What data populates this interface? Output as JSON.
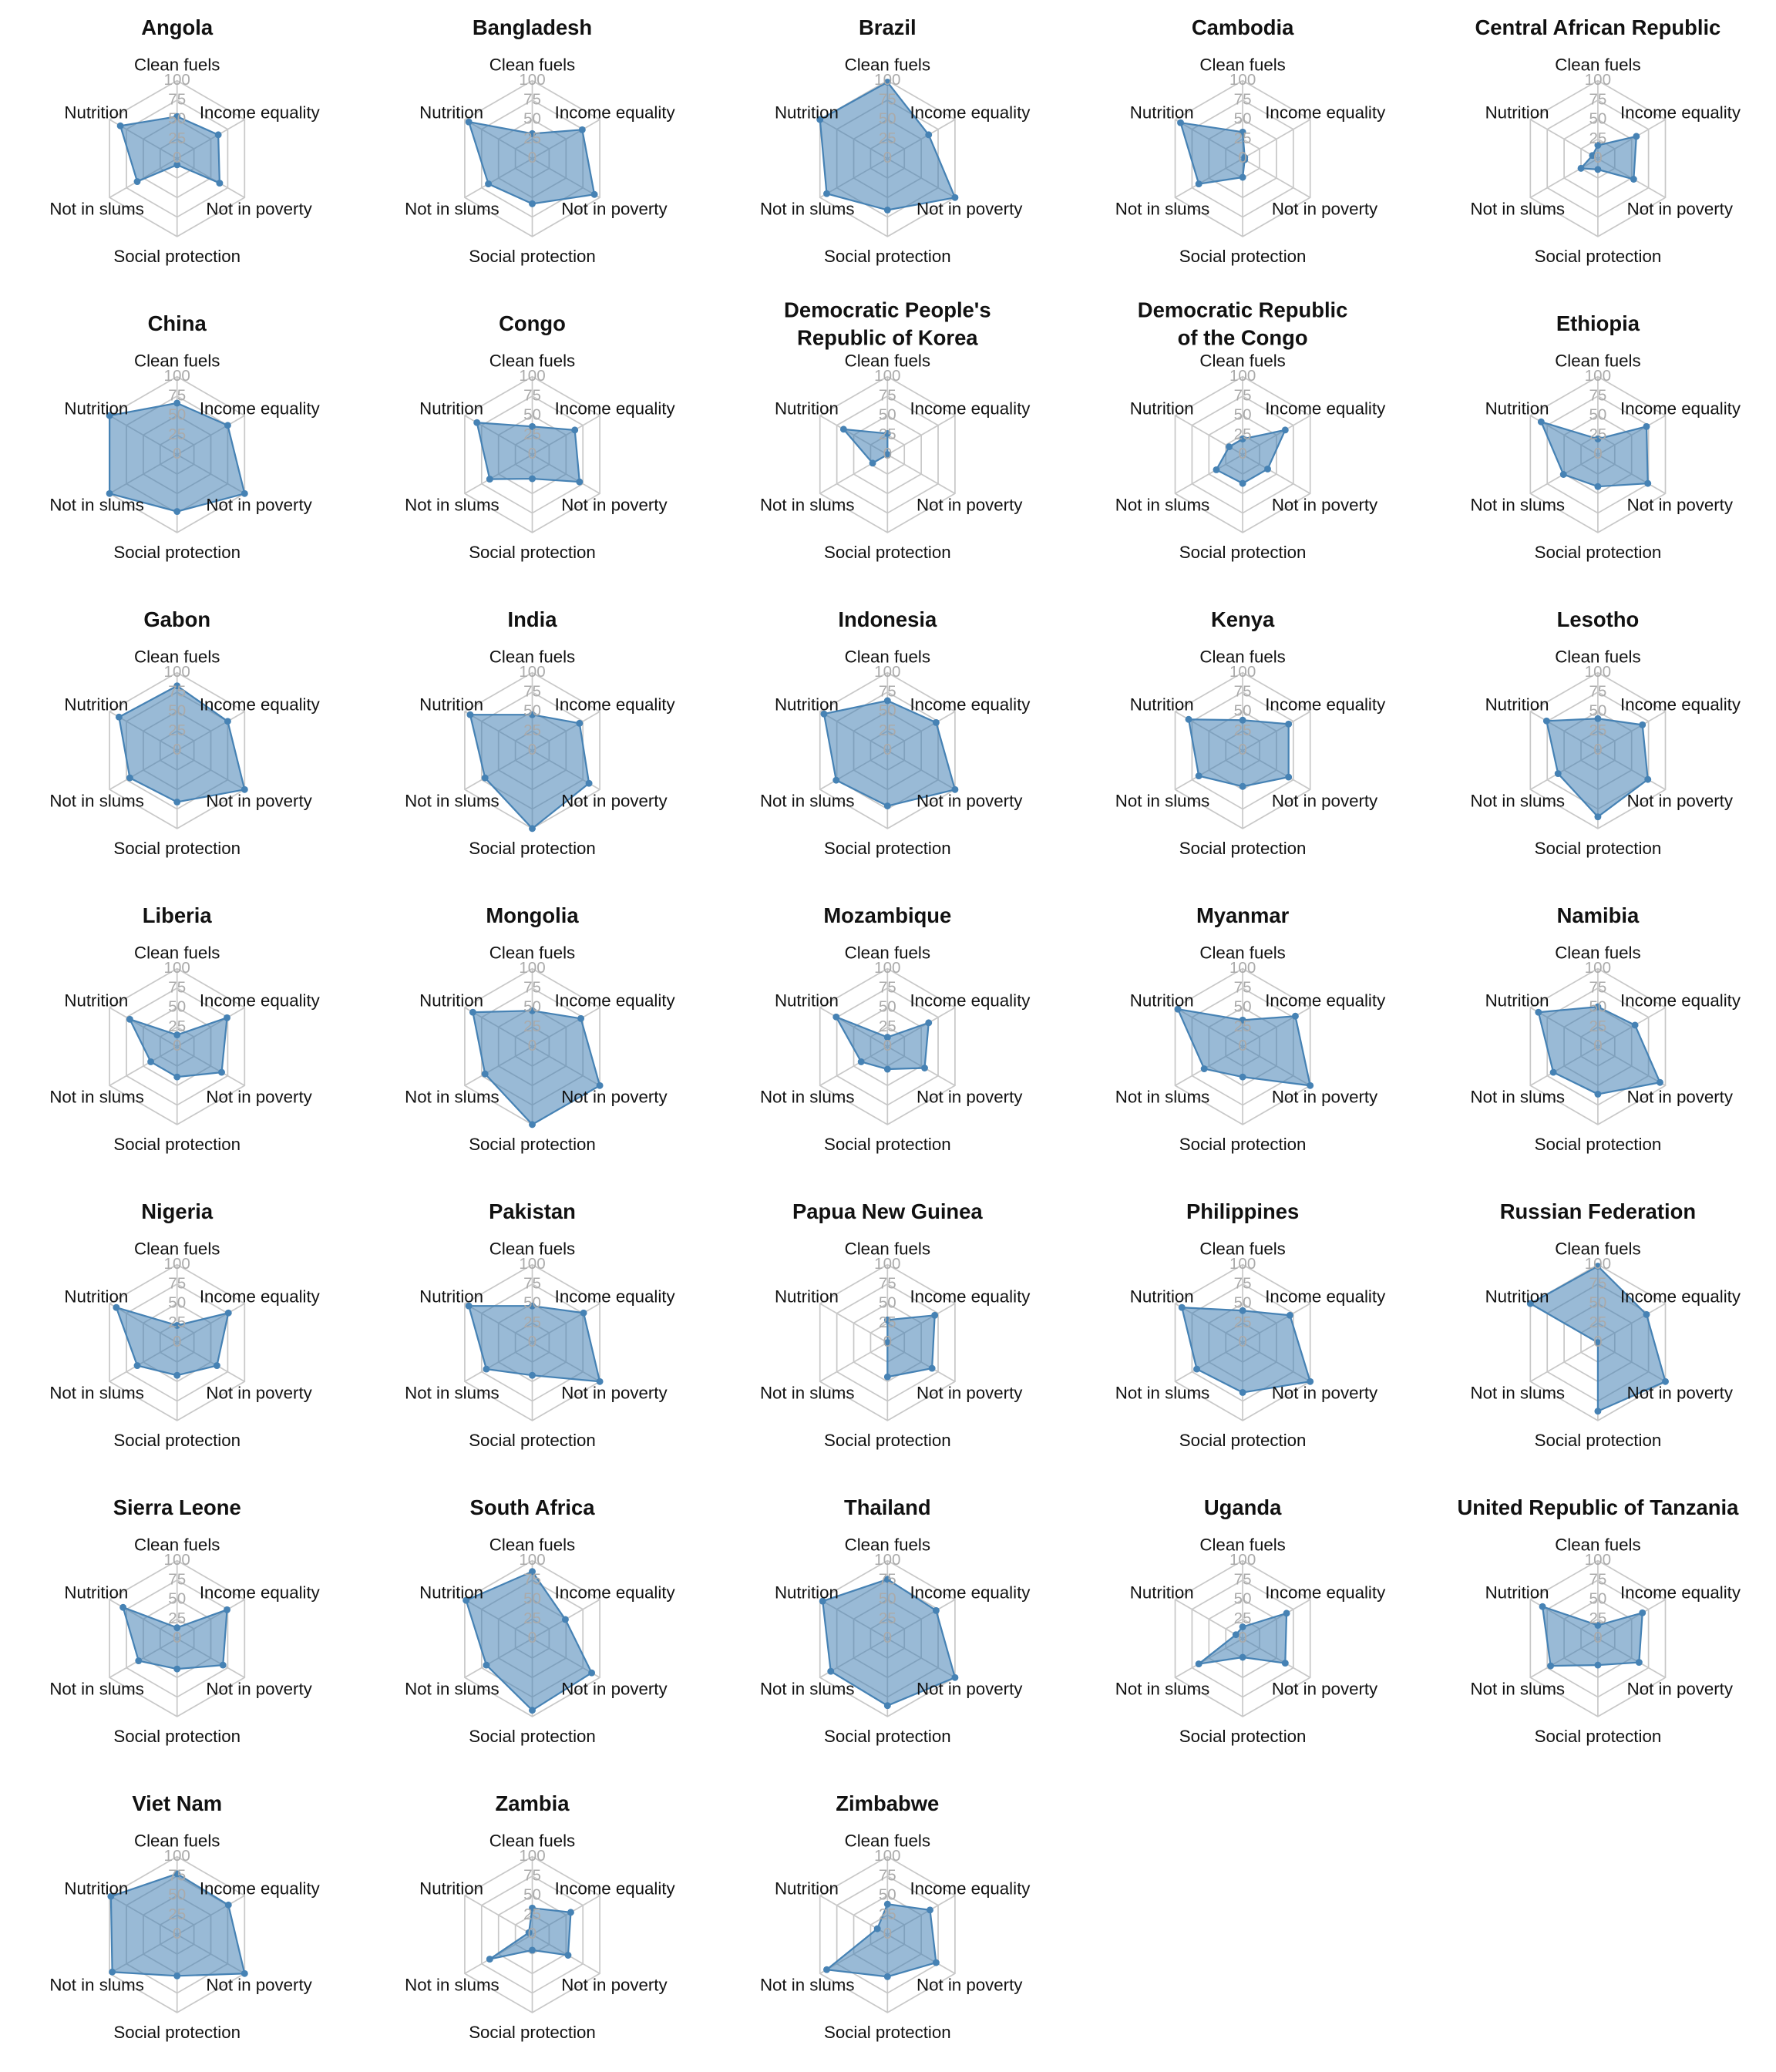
{
  "chart_data": [
    {
      "type": "radar",
      "title": "Angola",
      "categories": [
        "Clean fuels",
        "Income equality",
        "Not in poverty",
        "Social protection",
        "Not in slums",
        "Nutrition"
      ],
      "values": [
        54,
        61,
        63,
        8,
        59,
        84
      ],
      "color": "#4682b4",
      "rlim": [
        0,
        100
      ],
      "rticks": [
        0,
        25,
        50,
        75,
        100
      ]
    },
    {
      "type": "radar",
      "title": "Bangladesh",
      "categories": [
        "Clean fuels",
        "Income equality",
        "Not in poverty",
        "Social protection",
        "Not in slums",
        "Nutrition"
      ],
      "values": [
        32,
        74,
        92,
        58,
        65,
        94
      ],
      "color": "#4682b4",
      "rlim": [
        0,
        100
      ],
      "rticks": [
        0,
        25,
        50,
        75,
        100
      ]
    },
    {
      "type": "radar",
      "title": "Brazil",
      "categories": [
        "Clean fuels",
        "Income equality",
        "Not in poverty",
        "Social protection",
        "Not in slums",
        "Nutrition"
      ],
      "values": [
        98,
        61,
        100,
        66,
        90,
        100
      ],
      "color": "#4682b4",
      "rlim": [
        0,
        100
      ],
      "rticks": [
        0,
        25,
        50,
        75,
        100
      ]
    },
    {
      "type": "radar",
      "title": "Cambodia",
      "categories": [
        "Clean fuels",
        "Income equality",
        "Not in poverty",
        "Social protection",
        "Not in slums",
        "Nutrition"
      ],
      "values": [
        34,
        3,
        3,
        24,
        65,
        92
      ],
      "color": "#4682b4",
      "rlim": [
        0,
        100
      ],
      "rticks": [
        0,
        25,
        50,
        75,
        100
      ]
    },
    {
      "type": "radar",
      "title": "Central African Republic",
      "categories": [
        "Clean fuels",
        "Income equality",
        "Not in poverty",
        "Social protection",
        "Not in slums",
        "Nutrition"
      ],
      "values": [
        17,
        57,
        53,
        14,
        25,
        8
      ],
      "color": "#4682b4",
      "rlim": [
        0,
        100
      ],
      "rticks": [
        0,
        25,
        50,
        75,
        100
      ]
    },
    {
      "type": "radar",
      "title": "China",
      "categories": [
        "Clean fuels",
        "Income equality",
        "Not in poverty",
        "Social protection",
        "Not in slums",
        "Nutrition"
      ],
      "values": [
        66,
        75,
        100,
        73,
        100,
        100
      ],
      "color": "#4682b4",
      "rlim": [
        0,
        100
      ],
      "rticks": [
        0,
        25,
        50,
        75,
        100
      ]
    },
    {
      "type": "radar",
      "title": "Congo",
      "categories": [
        "Clean fuels",
        "Income equality",
        "Not in poverty",
        "Social protection",
        "Not in slums",
        "Nutrition"
      ],
      "values": [
        36,
        63,
        70,
        31,
        63,
        82
      ],
      "color": "#4682b4",
      "rlim": [
        0,
        100
      ],
      "rticks": [
        0,
        25,
        50,
        75,
        100
      ]
    },
    {
      "type": "radar",
      "title": [
        "Democratic People's",
        "Republic of Korea"
      ],
      "categories": [
        "Clean fuels",
        "Income equality",
        "Not in poverty",
        "Social protection",
        "Not in slums",
        "Nutrition"
      ],
      "values": [
        27,
        0,
        0,
        0,
        22,
        65
      ],
      "color": "#4682b4",
      "rlim": [
        0,
        100
      ],
      "rticks": [
        0,
        25,
        50,
        75,
        100
      ]
    },
    {
      "type": "radar",
      "title": [
        "Democratic Republic",
        "of the Congo"
      ],
      "categories": [
        "Clean fuels",
        "Income equality",
        "Not in poverty",
        "Social protection",
        "Not in slums",
        "Nutrition"
      ],
      "values": [
        20,
        63,
        37,
        37,
        39,
        20
      ],
      "color": "#4682b4",
      "rlim": [
        0,
        100
      ],
      "rticks": [
        0,
        25,
        50,
        75,
        100
      ]
    },
    {
      "type": "radar",
      "title": "Ethiopia",
      "categories": [
        "Clean fuels",
        "Income equality",
        "Not in poverty",
        "Social protection",
        "Not in slums",
        "Nutrition"
      ],
      "values": [
        20,
        72,
        74,
        41,
        51,
        84
      ],
      "color": "#4682b4",
      "rlim": [
        0,
        100
      ],
      "rticks": [
        0,
        25,
        50,
        75,
        100
      ]
    },
    {
      "type": "radar",
      "title": "Gabon",
      "categories": [
        "Clean fuels",
        "Income equality",
        "Not in poverty",
        "Social protection",
        "Not in slums",
        "Nutrition"
      ],
      "values": [
        83,
        75,
        100,
        66,
        70,
        86
      ],
      "color": "#4682b4",
      "rlim": [
        0,
        100
      ],
      "rticks": [
        0,
        25,
        50,
        75,
        100
      ]
    },
    {
      "type": "radar",
      "title": "India",
      "categories": [
        "Clean fuels",
        "Income equality",
        "Not in poverty",
        "Social protection",
        "Not in slums",
        "Nutrition"
      ],
      "values": [
        46,
        70,
        84,
        100,
        70,
        92
      ],
      "color": "#4682b4",
      "rlim": [
        0,
        100
      ],
      "rticks": [
        0,
        25,
        50,
        75,
        100
      ]
    },
    {
      "type": "radar",
      "title": "Indonesia",
      "categories": [
        "Clean fuels",
        "Income equality",
        "Not in poverty",
        "Social protection",
        "Not in slums",
        "Nutrition"
      ],
      "values": [
        64,
        72,
        100,
        71,
        76,
        94
      ],
      "color": "#4682b4",
      "rlim": [
        0,
        100
      ],
      "rticks": [
        0,
        25,
        50,
        75,
        100
      ]
    },
    {
      "type": "radar",
      "title": "Kenya",
      "categories": [
        "Clean fuels",
        "Income equality",
        "Not in poverty",
        "Social protection",
        "Not in slums",
        "Nutrition"
      ],
      "values": [
        39,
        68,
        68,
        46,
        65,
        80
      ],
      "color": "#4682b4",
      "rlim": [
        0,
        100
      ],
      "rticks": [
        0,
        25,
        50,
        75,
        100
      ]
    },
    {
      "type": "radar",
      "title": "Lesotho",
      "categories": [
        "Clean fuels",
        "Income equality",
        "Not in poverty",
        "Social protection",
        "Not in slums",
        "Nutrition"
      ],
      "values": [
        41,
        66,
        74,
        85,
        59,
        76
      ],
      "color": "#4682b4",
      "rlim": [
        0,
        100
      ],
      "rticks": [
        0,
        25,
        50,
        75,
        100
      ]
    },
    {
      "type": "radar",
      "title": "Liberia",
      "categories": [
        "Clean fuels",
        "Income equality",
        "Not in poverty",
        "Social protection",
        "Not in slums",
        "Nutrition"
      ],
      "values": [
        15,
        74,
        66,
        39,
        39,
        70
      ],
      "color": "#4682b4",
      "rlim": [
        0,
        100
      ],
      "rticks": [
        0,
        25,
        50,
        75,
        100
      ]
    },
    {
      "type": "radar",
      "title": "Mongolia",
      "categories": [
        "Clean fuels",
        "Income equality",
        "Not in poverty",
        "Social protection",
        "Not in slums",
        "Nutrition"
      ],
      "values": [
        46,
        72,
        100,
        100,
        70,
        88
      ],
      "color": "#4682b4",
      "rlim": [
        0,
        100
      ],
      "rticks": [
        0,
        25,
        50,
        75,
        100
      ]
    },
    {
      "type": "radar",
      "title": "Mozambique",
      "categories": [
        "Clean fuels",
        "Income equality",
        "Not in poverty",
        "Social protection",
        "Not in slums",
        "Nutrition"
      ],
      "values": [
        12,
        61,
        55,
        29,
        39,
        76
      ],
      "color": "#4682b4",
      "rlim": [
        0,
        100
      ],
      "rticks": [
        0,
        25,
        50,
        75,
        100
      ]
    },
    {
      "type": "radar",
      "title": "Myanmar",
      "categories": [
        "Clean fuels",
        "Income equality",
        "Not in poverty",
        "Social protection",
        "Not in slums",
        "Nutrition"
      ],
      "values": [
        34,
        78,
        100,
        39,
        57,
        96
      ],
      "color": "#4682b4",
      "rlim": [
        0,
        100
      ],
      "rticks": [
        0,
        25,
        50,
        75,
        100
      ]
    },
    {
      "type": "radar",
      "title": "Namibia",
      "categories": [
        "Clean fuels",
        "Income equality",
        "Not in poverty",
        "Social protection",
        "Not in slums",
        "Nutrition"
      ],
      "values": [
        51,
        55,
        92,
        61,
        66,
        88
      ],
      "color": "#4682b4",
      "rlim": [
        0,
        100
      ],
      "rticks": [
        0,
        25,
        50,
        75,
        100
      ]
    },
    {
      "type": "radar",
      "title": "Nigeria",
      "categories": [
        "Clean fuels",
        "Income equality",
        "Not in poverty",
        "Social protection",
        "Not in slums",
        "Nutrition"
      ],
      "values": [
        22,
        76,
        59,
        42,
        59,
        90
      ],
      "color": "#4682b4",
      "rlim": [
        0,
        100
      ],
      "rticks": [
        0,
        25,
        50,
        75,
        100
      ]
    },
    {
      "type": "radar",
      "title": "Pakistan",
      "categories": [
        "Clean fuels",
        "Income equality",
        "Not in poverty",
        "Social protection",
        "Not in slums",
        "Nutrition"
      ],
      "values": [
        47,
        76,
        100,
        42,
        68,
        94
      ],
      "color": "#4682b4",
      "rlim": [
        0,
        100
      ],
      "rticks": [
        0,
        25,
        50,
        75,
        100
      ]
    },
    {
      "type": "radar",
      "title": "Papua New Guinea",
      "categories": [
        "Clean fuels",
        "Income equality",
        "Not in poverty",
        "Social protection",
        "Not in slums",
        "Nutrition"
      ],
      "values": [
        29,
        70,
        66,
        44,
        0,
        0
      ],
      "color": "#4682b4",
      "rlim": [
        0,
        100
      ],
      "rticks": [
        0,
        25,
        50,
        75,
        100
      ]
    },
    {
      "type": "radar",
      "title": "Philippines",
      "categories": [
        "Clean fuels",
        "Income equality",
        "Not in poverty",
        "Social protection",
        "Not in slums",
        "Nutrition"
      ],
      "values": [
        41,
        70,
        100,
        64,
        68,
        90
      ],
      "color": "#4682b4",
      "rlim": [
        0,
        100
      ],
      "rticks": [
        0,
        25,
        50,
        75,
        100
      ]
    },
    {
      "type": "radar",
      "title": "Russian Federation",
      "categories": [
        "Clean fuels",
        "Income equality",
        "Not in poverty",
        "Social protection",
        "Not in slums",
        "Nutrition"
      ],
      "values": [
        98,
        72,
        100,
        88,
        0,
        100
      ],
      "color": "#4682b4",
      "rlim": [
        0,
        100
      ],
      "rticks": [
        0,
        25,
        50,
        75,
        100
      ]
    },
    {
      "type": "radar",
      "title": "Sierra Leone",
      "categories": [
        "Clean fuels",
        "Income equality",
        "Not in poverty",
        "Social protection",
        "Not in slums",
        "Nutrition"
      ],
      "values": [
        14,
        74,
        68,
        39,
        57,
        80
      ],
      "color": "#4682b4",
      "rlim": [
        0,
        100
      ],
      "rticks": [
        0,
        25,
        50,
        75,
        100
      ]
    },
    {
      "type": "radar",
      "title": "South Africa",
      "categories": [
        "Clean fuels",
        "Income equality",
        "Not in poverty",
        "Social protection",
        "Not in slums",
        "Nutrition"
      ],
      "values": [
        86,
        49,
        88,
        92,
        68,
        98
      ],
      "color": "#4682b4",
      "rlim": [
        0,
        100
      ],
      "rticks": [
        0,
        25,
        50,
        75,
        100
      ]
    },
    {
      "type": "radar",
      "title": "Thailand",
      "categories": [
        "Clean fuels",
        "Income equality",
        "Not in poverty",
        "Social protection",
        "Not in slums",
        "Nutrition"
      ],
      "values": [
        76,
        72,
        100,
        86,
        84,
        96
      ],
      "color": "#4682b4",
      "rlim": [
        0,
        100
      ],
      "rticks": [
        0,
        25,
        50,
        75,
        100
      ]
    },
    {
      "type": "radar",
      "title": "Uganda",
      "categories": [
        "Clean fuels",
        "Income equality",
        "Not in poverty",
        "Social protection",
        "Not in slums",
        "Nutrition"
      ],
      "values": [
        15,
        65,
        63,
        24,
        65,
        10
      ],
      "color": "#4682b4",
      "rlim": [
        0,
        100
      ],
      "rticks": [
        0,
        25,
        50,
        75,
        100
      ]
    },
    {
      "type": "radar",
      "title": "United Republic of Tanzania",
      "categories": [
        "Clean fuels",
        "Income equality",
        "Not in poverty",
        "Social protection",
        "Not in slums",
        "Nutrition"
      ],
      "values": [
        17,
        66,
        61,
        34,
        70,
        82
      ],
      "color": "#4682b4",
      "rlim": [
        0,
        100
      ],
      "rticks": [
        0,
        25,
        50,
        75,
        100
      ]
    },
    {
      "type": "radar",
      "title": "Viet Nam",
      "categories": [
        "Clean fuels",
        "Income equality",
        "Not in poverty",
        "Social protection",
        "Not in slums",
        "Nutrition"
      ],
      "values": [
        78,
        76,
        100,
        53,
        96,
        98
      ],
      "color": "#4682b4",
      "rlim": [
        0,
        100
      ],
      "rticks": [
        0,
        25,
        50,
        75,
        100
      ]
    },
    {
      "type": "radar",
      "title": "Zambia",
      "categories": [
        "Clean fuels",
        "Income equality",
        "Not in poverty",
        "Social protection",
        "Not in slums",
        "Nutrition"
      ],
      "values": [
        34,
        57,
        53,
        20,
        63,
        5
      ],
      "color": "#4682b4",
      "rlim": [
        0,
        100
      ],
      "rticks": [
        0,
        25,
        50,
        75,
        100
      ]
    },
    {
      "type": "radar",
      "title": "Zimbabwe",
      "categories": [
        "Clean fuels",
        "Income equality",
        "Not in poverty",
        "Social protection",
        "Not in slums",
        "Nutrition"
      ],
      "values": [
        39,
        63,
        72,
        54,
        90,
        15
      ],
      "color": "#4682b4",
      "rlim": [
        0,
        100
      ],
      "rticks": [
        0,
        25,
        50,
        75,
        100
      ]
    }
  ]
}
